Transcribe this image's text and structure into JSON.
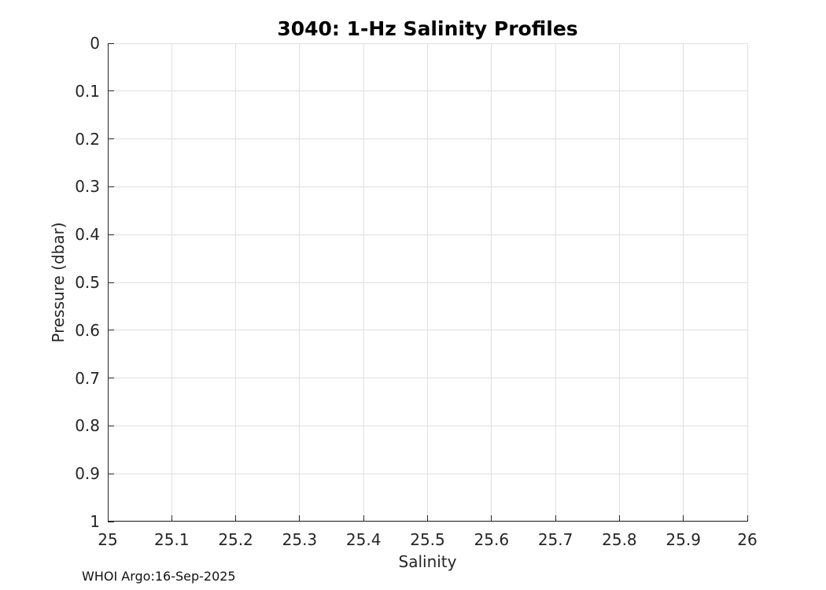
{
  "chart_data": {
    "type": "line",
    "title": "3040: 1-Hz Salinity Profiles",
    "xlabel": "Salinity",
    "ylabel": "Pressure (dbar)",
    "xlim": [
      25,
      26
    ],
    "ylim": [
      0,
      1
    ],
    "y_increases_downward": true,
    "x_ticks": [
      25,
      25.1,
      25.2,
      25.3,
      25.4,
      25.5,
      25.6,
      25.7,
      25.8,
      25.9,
      26
    ],
    "x_tick_labels": [
      "25",
      "25.1",
      "25.2",
      "25.3",
      "25.4",
      "25.5",
      "25.6",
      "25.7",
      "25.8",
      "25.9",
      "26"
    ],
    "y_ticks": [
      0,
      0.1,
      0.2,
      0.3,
      0.4,
      0.5,
      0.6,
      0.7,
      0.8,
      0.9,
      1
    ],
    "y_tick_labels": [
      "0",
      "0.1",
      "0.2",
      "0.3",
      "0.4",
      "0.5",
      "0.6",
      "0.7",
      "0.8",
      "0.9",
      "1"
    ],
    "grid": true,
    "legend_position": "none",
    "series": []
  },
  "footer": {
    "text": "WHOI Argo:16-Sep-2025"
  },
  "colors": {
    "axis": "#262626",
    "grid": "#e0e0e0",
    "title": "#000000",
    "background": "#ffffff"
  }
}
